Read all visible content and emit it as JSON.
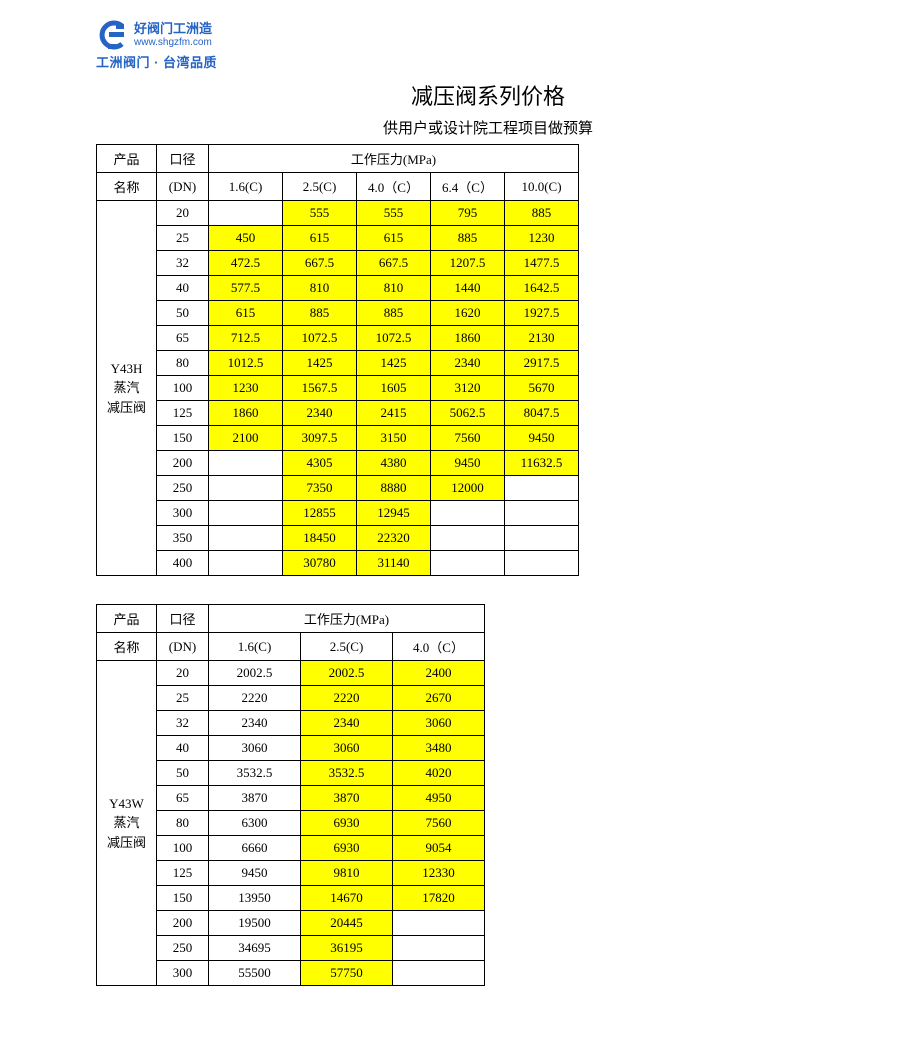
{
  "logo": {
    "line1": "好阀门工洲造",
    "url": "www.shgzfm.com",
    "line2": "工洲阀门 · 台湾品质",
    "color": "#2563c4"
  },
  "title": "减压阀系列价格",
  "subtitle": "供用户或设计院工程项目做预算",
  "highlight_color": "#ffff00",
  "table1": {
    "headers": {
      "product": "产品\n名称",
      "dn": "口径\n(DN)",
      "pressure_group": "工作压力(MPa)",
      "cols": [
        "1.6(C)",
        "2.5(C)",
        "4.0（C）",
        "6.4（C）",
        "10.0(C)"
      ]
    },
    "product_name": "Y43H\n蒸汽\n减压阀",
    "col_widths": {
      "name": 60,
      "dn": 52,
      "data": 74
    },
    "rows": [
      {
        "dn": "20",
        "v": [
          "",
          "555",
          "555",
          "795",
          "885"
        ],
        "hl": [
          0,
          1,
          1,
          1,
          1
        ]
      },
      {
        "dn": "25",
        "v": [
          "450",
          "615",
          "615",
          "885",
          "1230"
        ],
        "hl": [
          1,
          1,
          1,
          1,
          1
        ]
      },
      {
        "dn": "32",
        "v": [
          "472.5",
          "667.5",
          "667.5",
          "1207.5",
          "1477.5"
        ],
        "hl": [
          1,
          1,
          1,
          1,
          1
        ]
      },
      {
        "dn": "40",
        "v": [
          "577.5",
          "810",
          "810",
          "1440",
          "1642.5"
        ],
        "hl": [
          1,
          1,
          1,
          1,
          1
        ]
      },
      {
        "dn": "50",
        "v": [
          "615",
          "885",
          "885",
          "1620",
          "1927.5"
        ],
        "hl": [
          1,
          1,
          1,
          1,
          1
        ]
      },
      {
        "dn": "65",
        "v": [
          "712.5",
          "1072.5",
          "1072.5",
          "1860",
          "2130"
        ],
        "hl": [
          1,
          1,
          1,
          1,
          1
        ]
      },
      {
        "dn": "80",
        "v": [
          "1012.5",
          "1425",
          "1425",
          "2340",
          "2917.5"
        ],
        "hl": [
          1,
          1,
          1,
          1,
          1
        ]
      },
      {
        "dn": "100",
        "v": [
          "1230",
          "1567.5",
          "1605",
          "3120",
          "5670"
        ],
        "hl": [
          1,
          1,
          1,
          1,
          1
        ]
      },
      {
        "dn": "125",
        "v": [
          "1860",
          "2340",
          "2415",
          "5062.5",
          "8047.5"
        ],
        "hl": [
          1,
          1,
          1,
          1,
          1
        ]
      },
      {
        "dn": "150",
        "v": [
          "2100",
          "3097.5",
          "3150",
          "7560",
          "9450"
        ],
        "hl": [
          1,
          1,
          1,
          1,
          1
        ]
      },
      {
        "dn": "200",
        "v": [
          "",
          "4305",
          "4380",
          "9450",
          "11632.5"
        ],
        "hl": [
          0,
          1,
          1,
          1,
          1
        ]
      },
      {
        "dn": "250",
        "v": [
          "",
          "7350",
          "8880",
          "12000",
          ""
        ],
        "hl": [
          0,
          1,
          1,
          1,
          0
        ]
      },
      {
        "dn": "300",
        "v": [
          "",
          "12855",
          "12945",
          "",
          ""
        ],
        "hl": [
          0,
          1,
          1,
          0,
          0
        ]
      },
      {
        "dn": "350",
        "v": [
          "",
          "18450",
          "22320",
          "",
          ""
        ],
        "hl": [
          0,
          1,
          1,
          0,
          0
        ]
      },
      {
        "dn": "400",
        "v": [
          "",
          "30780",
          "31140",
          "",
          ""
        ],
        "hl": [
          0,
          1,
          1,
          0,
          0
        ]
      }
    ]
  },
  "table2": {
    "headers": {
      "product": "产品\n名称",
      "dn": "口径\n(DN)",
      "pressure_group": "工作压力(MPa)",
      "cols": [
        "1.6(C)",
        "2.5(C)",
        "4.0（C）"
      ]
    },
    "product_name": "Y43W\n蒸汽\n减压阀",
    "col_widths": {
      "name": 60,
      "dn": 52,
      "data": 92
    },
    "rows": [
      {
        "dn": "20",
        "v": [
          "2002.5",
          "2002.5",
          "2400"
        ],
        "hl": [
          0,
          1,
          1
        ]
      },
      {
        "dn": "25",
        "v": [
          "2220",
          "2220",
          "2670"
        ],
        "hl": [
          0,
          1,
          1
        ]
      },
      {
        "dn": "32",
        "v": [
          "2340",
          "2340",
          "3060"
        ],
        "hl": [
          0,
          1,
          1
        ]
      },
      {
        "dn": "40",
        "v": [
          "3060",
          "3060",
          "3480"
        ],
        "hl": [
          0,
          1,
          1
        ]
      },
      {
        "dn": "50",
        "v": [
          "3532.5",
          "3532.5",
          "4020"
        ],
        "hl": [
          0,
          1,
          1
        ]
      },
      {
        "dn": "65",
        "v": [
          "3870",
          "3870",
          "4950"
        ],
        "hl": [
          0,
          1,
          1
        ]
      },
      {
        "dn": "80",
        "v": [
          "6300",
          "6930",
          "7560"
        ],
        "hl": [
          0,
          1,
          1
        ]
      },
      {
        "dn": "100",
        "v": [
          "6660",
          "6930",
          "9054"
        ],
        "hl": [
          0,
          1,
          1
        ]
      },
      {
        "dn": "125",
        "v": [
          "9450",
          "9810",
          "12330"
        ],
        "hl": [
          0,
          1,
          1
        ]
      },
      {
        "dn": "150",
        "v": [
          "13950",
          "14670",
          "17820"
        ],
        "hl": [
          0,
          1,
          1
        ]
      },
      {
        "dn": "200",
        "v": [
          "19500",
          "20445",
          ""
        ],
        "hl": [
          0,
          1,
          0
        ]
      },
      {
        "dn": "250",
        "v": [
          "34695",
          "36195",
          ""
        ],
        "hl": [
          0,
          1,
          0
        ]
      },
      {
        "dn": "300",
        "v": [
          "55500",
          "57750",
          ""
        ],
        "hl": [
          0,
          1,
          0
        ]
      }
    ]
  }
}
